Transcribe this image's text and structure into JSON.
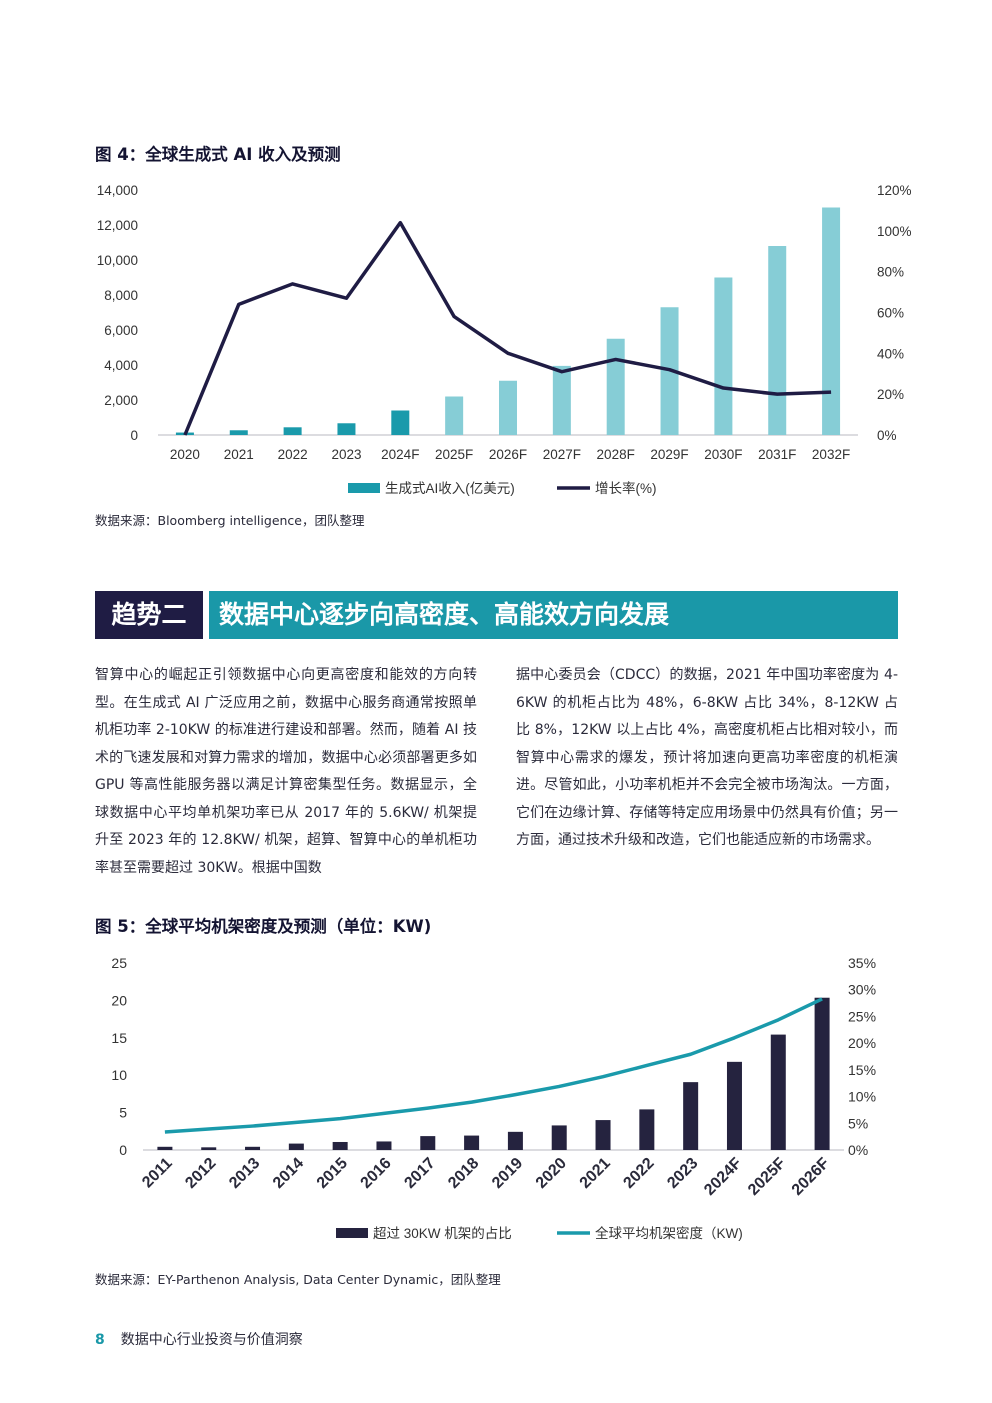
{
  "figure4": {
    "title": "图 4：全球生成式 AI 收入及预测",
    "source": "数据来源：Bloomberg intelligence，团队整理"
  },
  "figure5": {
    "title": "图 5：全球平均机架密度及预测（单位：KW)",
    "source": "数据来源：EY-Parthenon Analysis, Data Center Dynamic，团队整理"
  },
  "section": {
    "tag": "趋势二",
    "heading": "数据中心逐步向高密度、高能效方向发展"
  },
  "body": {
    "left": "智算中心的崛起正引领数据中心向更高密度和能效的方向转型。在生成式 AI 广泛应用之前，数据中心服务商通常按照单机柜功率 2-10KW 的标准进行建设和部署。然而，随着 AI 技术的飞速发展和对算力需求的增加，数据中心必须部署更多如 GPU 等高性能服务器以满足计算密集型任务。数据显示，全球数据中心平均单机架功率已从 2017 年的 5.6KW/ 机架提升至 2023 年的 12.8KW/ 机架，超算、智算中心的单机柜功率甚至需要超过 30KW。根据中国数",
    "right": "据中心委员会（CDCC）的数据，2021 年中国功率密度为 4-6KW 的机柜占比为 48%，6-8KW 占比 34%，8-12KW 占比 8%，12KW 以上占比 4%，高密度机柜占比相对较小，而智算中心需求的爆发，预计将加速向更高功率密度的机柜演进。尽管如此，小功率机柜并不会完全被市场淘汰。一方面，它们在边缘计算、存储等特定应用场景中仍然具有价值；另一方面，通过技术升级和改造，它们也能适应新的市场需求。"
  },
  "footer": {
    "page": "8",
    "text": "数据中心行业投资与价值洞察"
  },
  "chart_data": [
    {
      "type": "bar",
      "categories": [
        "2020",
        "2021",
        "2022",
        "2023",
        "2024F",
        "2025F",
        "2026F",
        "2027F",
        "2028F",
        "2029F",
        "2030F",
        "2031F",
        "2032F"
      ],
      "series": [
        {
          "name": "生成式AI收入(亿美元)",
          "type": "bar",
          "axis": "left",
          "values": [
            140,
            270,
            440,
            670,
            1400,
            2200,
            3100,
            3950,
            5500,
            7300,
            9000,
            10800,
            13000
          ],
          "colors": [
            "#1a9aab",
            "#1a9aab",
            "#1a9aab",
            "#1a9aab",
            "#1a9aab",
            "#86cdd6",
            "#86cdd6",
            "#86cdd6",
            "#86cdd6",
            "#86cdd6",
            "#86cdd6",
            "#86cdd6",
            "#86cdd6"
          ]
        },
        {
          "name": "增长率(%)",
          "type": "line",
          "axis": "right",
          "color": "#1f1c44",
          "values": [
            0,
            64,
            74,
            67,
            104,
            58,
            40,
            31,
            37,
            32,
            23,
            20,
            21
          ]
        }
      ],
      "left_ticks": [
        "14,000",
        "12,000",
        "10,000",
        "8,000",
        "6,000",
        "4,000",
        "2,000",
        "0"
      ],
      "right_ticks": [
        "120%",
        "100%",
        "80%",
        "60%",
        "40%",
        "20%",
        "0%"
      ],
      "ylim": [
        0,
        14000
      ],
      "y2lim": [
        0,
        120
      ],
      "grid": false,
      "legend_position": "bottom"
    },
    {
      "type": "bar",
      "categories": [
        "2011",
        "2012",
        "2013",
        "2014",
        "2015",
        "2016",
        "2017",
        "2018",
        "2019",
        "2020",
        "2021",
        "2022",
        "2023",
        "2024F",
        "2025F",
        "2026F"
      ],
      "series": [
        {
          "name": "超过 30KW 机架的占比",
          "type": "bar",
          "axis": "right",
          "color": "#25233f",
          "values": [
            0.6,
            0.5,
            0.6,
            1.2,
            1.5,
            1.6,
            2.6,
            2.7,
            3.4,
            4.6,
            5.6,
            7.6,
            12.7,
            16.5,
            21.6,
            28.5
          ]
        },
        {
          "name": "全球平均机架密度（KW)",
          "type": "line",
          "axis": "left",
          "color": "#1a9aab",
          "values": [
            2.4,
            2.8,
            3.2,
            3.7,
            4.2,
            4.9,
            5.6,
            6.4,
            7.4,
            8.5,
            9.8,
            11.3,
            12.8,
            15.0,
            17.4,
            20.2
          ]
        }
      ],
      "left_ticks": [
        "25",
        "20",
        "15",
        "10",
        "5",
        "0"
      ],
      "right_ticks": [
        "35%",
        "30%",
        "25%",
        "20%",
        "15%",
        "10%",
        "5%",
        "0%"
      ],
      "ylim": [
        0,
        25
      ],
      "y2lim": [
        0,
        35
      ],
      "grid": false,
      "legend_position": "bottom"
    }
  ]
}
